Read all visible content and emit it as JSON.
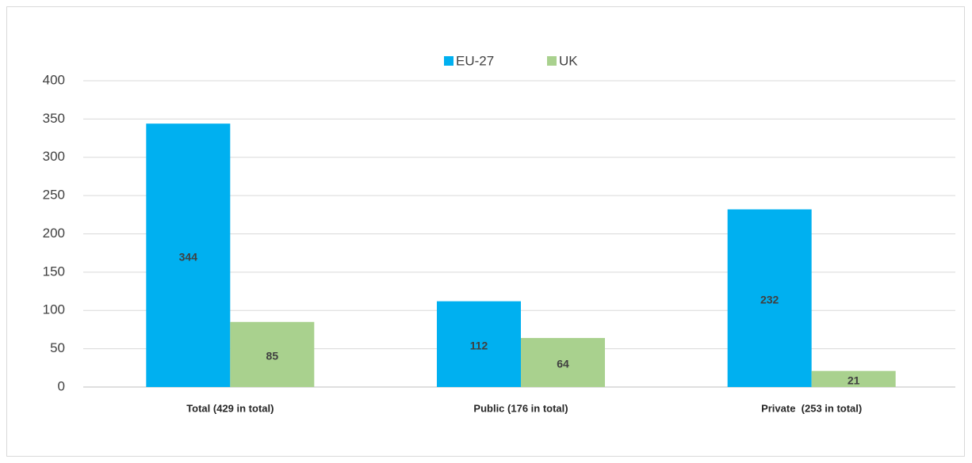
{
  "chart_data": {
    "type": "bar",
    "categories": [
      "Total (429 in total)",
      "Public (176 in total)",
      "Private  (253 in total)"
    ],
    "series": [
      {
        "name": "EU-27",
        "color": "#00b0f0",
        "values": [
          344,
          112,
          232
        ]
      },
      {
        "name": "UK",
        "color": "#a9d18e",
        "values": [
          85,
          64,
          21
        ]
      }
    ],
    "ylim": [
      0,
      400
    ],
    "yticks": [
      0,
      50,
      100,
      150,
      200,
      250,
      300,
      350,
      400
    ],
    "grid": true,
    "legend": "top"
  }
}
